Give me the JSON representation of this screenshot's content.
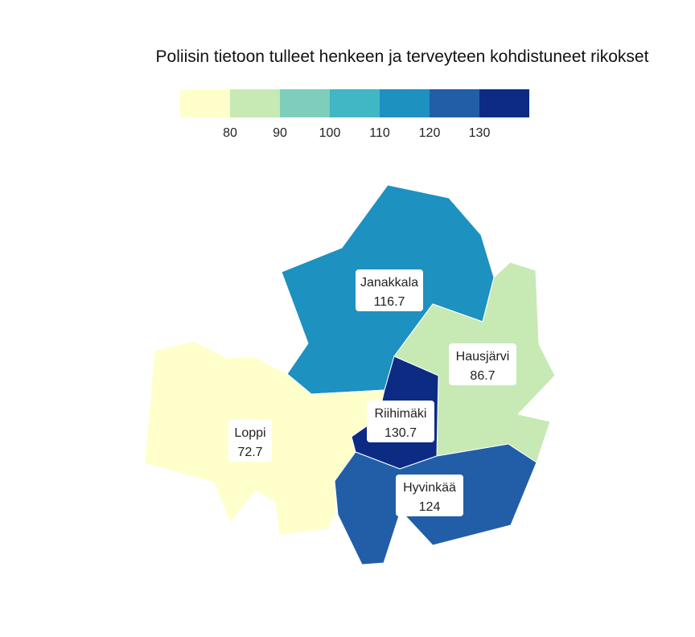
{
  "title": "Poliisin tietoon tulleet henkeen ja terveyteen kohdistuneet rikokset",
  "legend": {
    "colors": [
      "#ffffcc",
      "#c7e9b4",
      "#7fcdbb",
      "#41b6c4",
      "#1d91c0",
      "#225ea8",
      "#0c2c84"
    ],
    "breaks": [
      80,
      90,
      100,
      110,
      120,
      130
    ],
    "tick_labels": [
      "80",
      "90",
      "100",
      "110",
      "120",
      "130"
    ]
  },
  "regions": [
    {
      "id": "janakkala",
      "name": "Janakkala",
      "value": 116.7,
      "value_label": "116.7",
      "color": "#1d91c0"
    },
    {
      "id": "hausjarvi",
      "name": "Hausjärvi",
      "value": 86.7,
      "value_label": "86.7",
      "color": "#c7e9b4"
    },
    {
      "id": "loppi",
      "name": "Loppi",
      "value": 72.7,
      "value_label": "72.7",
      "color": "#ffffcc"
    },
    {
      "id": "riihimaki",
      "name": "Riihimäki",
      "value": 130.7,
      "value_label": "130.7",
      "color": "#0c2c84"
    },
    {
      "id": "hyvinkaa",
      "name": "Hyvinkää",
      "value": 124,
      "value_label": "124",
      "color": "#225ea8"
    }
  ]
}
